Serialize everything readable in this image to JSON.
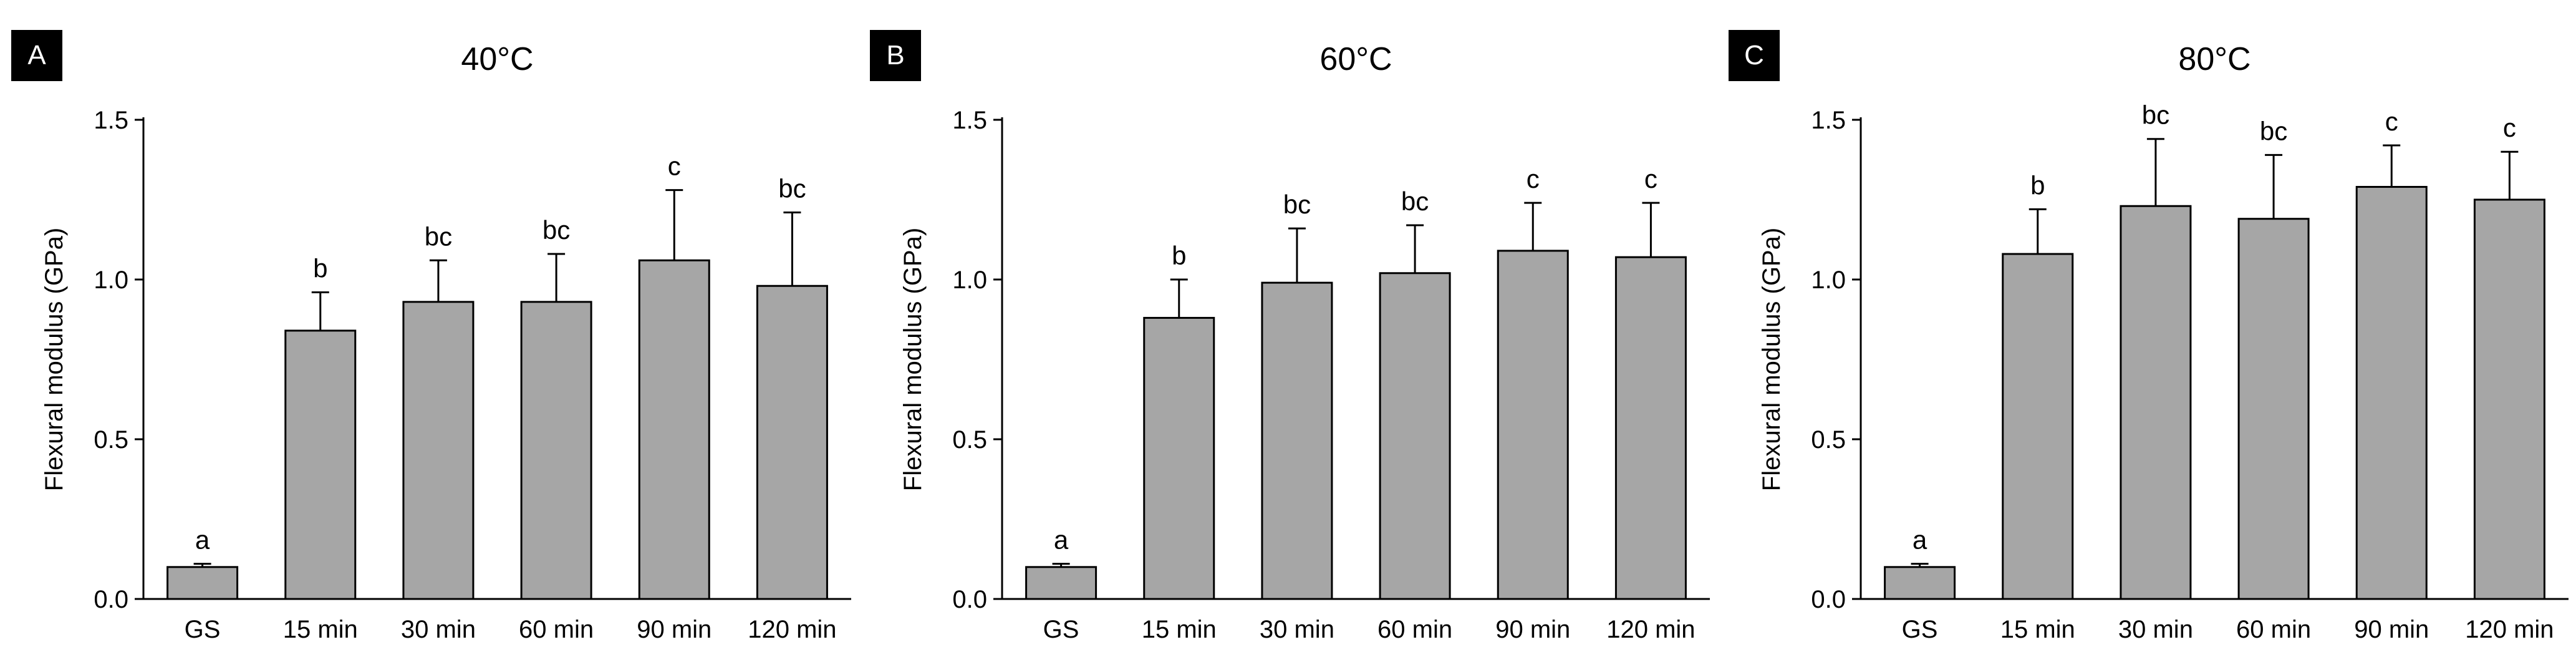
{
  "chart_data": [
    {
      "type": "bar",
      "panel_label": "A",
      "title": "40°C",
      "ylabel": "Flexural modulus (GPa)",
      "xlabel": "",
      "ylim": [
        0,
        1.5
      ],
      "yticks": [
        "0.0",
        "0.5",
        "1.0",
        "1.5"
      ],
      "categories": [
        "GS",
        "15 min",
        "30 min",
        "60 min",
        "90 min",
        "120 min"
      ],
      "values": [
        0.1,
        0.84,
        0.93,
        0.93,
        1.06,
        0.98
      ],
      "errors": [
        0.01,
        0.12,
        0.13,
        0.15,
        0.22,
        0.23
      ],
      "letters": [
        "a",
        "b",
        "bc",
        "bc",
        "c",
        "bc"
      ],
      "bar_color": "#a6a6a6",
      "grid": false
    },
    {
      "type": "bar",
      "panel_label": "B",
      "title": "60°C",
      "ylabel": "Flexural modulus (GPa)",
      "xlabel": "",
      "ylim": [
        0,
        1.5
      ],
      "yticks": [
        "0.0",
        "0.5",
        "1.0",
        "1.5"
      ],
      "categories": [
        "GS",
        "15 min",
        "30 min",
        "60 min",
        "90 min",
        "120 min"
      ],
      "values": [
        0.1,
        0.88,
        0.99,
        1.02,
        1.09,
        1.07
      ],
      "errors": [
        0.01,
        0.12,
        0.17,
        0.15,
        0.15,
        0.17
      ],
      "letters": [
        "a",
        "b",
        "bc",
        "bc",
        "c",
        "c"
      ],
      "bar_color": "#a6a6a6",
      "grid": false
    },
    {
      "type": "bar",
      "panel_label": "C",
      "title": "80°C",
      "ylabel": "Flexural modulus (GPa)",
      "xlabel": "",
      "ylim": [
        0,
        1.5
      ],
      "yticks": [
        "0.0",
        "0.5",
        "1.0",
        "1.5"
      ],
      "categories": [
        "GS",
        "15 min",
        "30 min",
        "60 min",
        "90 min",
        "120 min"
      ],
      "values": [
        0.1,
        1.08,
        1.23,
        1.19,
        1.29,
        1.25
      ],
      "errors": [
        0.01,
        0.14,
        0.21,
        0.2,
        0.13,
        0.15
      ],
      "letters": [
        "a",
        "b",
        "bc",
        "bc",
        "c",
        "c"
      ],
      "bar_color": "#a6a6a6",
      "grid": false
    }
  ]
}
